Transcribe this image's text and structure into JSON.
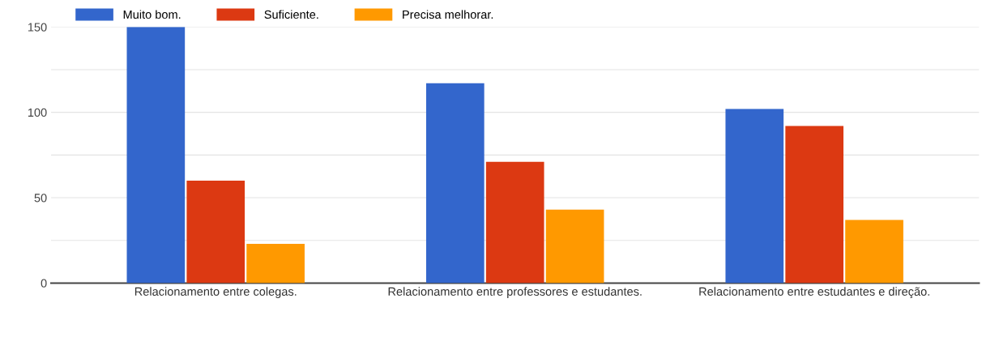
{
  "chart_data": {
    "type": "bar",
    "categories": [
      "Relacionamento entre colegas.",
      "Relacionamento entre professores e estudantes.",
      "Relacionamento entre estudantes e direção."
    ],
    "series": [
      {
        "name": "Muito bom.",
        "color": "#3366cc",
        "values": [
          150,
          117,
          102
        ]
      },
      {
        "name": "Suficiente.",
        "color": "#dc3912",
        "values": [
          60,
          71,
          92
        ]
      },
      {
        "name": "Precisa melhorar.",
        "color": "#ff9900",
        "values": [
          23,
          43,
          37
        ]
      }
    ],
    "ylim": [
      0,
      150
    ],
    "yticks": [
      0,
      {
        "value": 25,
        "label": null
      },
      50,
      {
        "value": 75,
        "label": null
      },
      100,
      {
        "value": 125,
        "label": null
      },
      150
    ],
    "grid": "y",
    "legend": "top left"
  }
}
